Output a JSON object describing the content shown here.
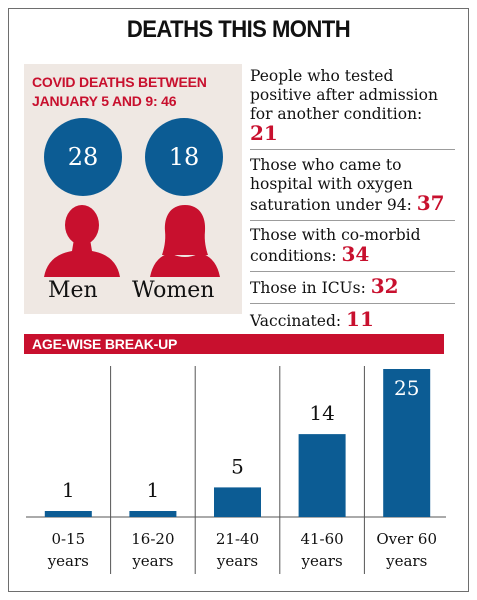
{
  "title": "DEATHS THIS MONTH",
  "covid": {
    "heading": "COVID DEATHS BETWEEN JANUARY 5 AND 9: 46",
    "men": {
      "count": "28",
      "label": "Men"
    },
    "women": {
      "count": "18",
      "label": "Women"
    },
    "colors": {
      "circle": "#0c5c94",
      "figure": "#c8102e",
      "heading": "#c8102e",
      "panel": "#efe8e3"
    }
  },
  "facts": [
    {
      "text": "People who tested positive after admission for another condition: ",
      "value": "21"
    },
    {
      "text": "Those who came to hospital with oxygen saturation under 94: ",
      "value": "37"
    },
    {
      "text": "Those with co-morbid conditions: ",
      "value": "34"
    },
    {
      "text": "Those in ICUs: ",
      "value": "32"
    },
    {
      "text": "Vaccinated: ",
      "value": "11"
    }
  ],
  "age_banner": "AGE-WISE BREAK-UP",
  "chart_data": {
    "type": "bar",
    "categories": [
      "0-15 years",
      "16-20 years",
      "21-40 years",
      "41-60 years",
      "Over 60 years"
    ],
    "category_lines": [
      [
        "0-15",
        "years"
      ],
      [
        "16-20",
        "years"
      ],
      [
        "21-40",
        "years"
      ],
      [
        "41-60",
        "years"
      ],
      [
        "Over 60",
        "years"
      ]
    ],
    "values": [
      1,
      1,
      5,
      14,
      25
    ],
    "ylim": [
      0,
      25
    ],
    "bar_color": "#0c5c94",
    "grid": false
  }
}
